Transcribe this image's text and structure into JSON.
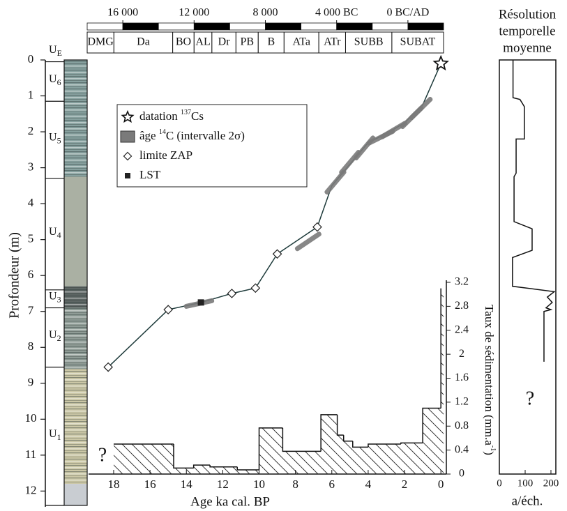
{
  "chart_data": [
    {
      "type": "line",
      "xlabel": "Age ka cal. BP",
      "ylabel": "Profondeur (m)",
      "xlim": [
        19.38,
        -0.3
      ],
      "ylim": [
        0,
        12.4
      ],
      "xticks": [
        18,
        16,
        14,
        12,
        10,
        8,
        6,
        4,
        2,
        0
      ],
      "yticks": [
        0,
        1,
        2,
        3,
        4,
        5,
        6,
        7,
        8,
        9,
        10,
        11,
        12
      ],
      "curve": {
        "color": "#1d3a3a",
        "x": [
          18.3,
          15,
          13.2,
          11.5,
          10.2,
          9,
          6.8,
          6,
          5,
          4,
          3,
          2,
          1,
          0
        ],
        "y": [
          8.55,
          6.95,
          6.75,
          6.5,
          6.35,
          5.4,
          4.65,
          3.5,
          2.9,
          2.3,
          2.05,
          1.75,
          1.25,
          0.1
        ]
      },
      "cs137": {
        "label": [
          "datation ",
          "137",
          "Cs"
        ],
        "x": [
          0
        ],
        "y": [
          0.1
        ]
      },
      "c14": {
        "label": [
          "âge ",
          "14",
          "C  (intervalle 2σ)"
        ],
        "color": "#7a7a7a",
        "x": [
          13.3,
          7.3,
          5.8,
          5.0,
          4.2,
          3.3,
          2.6,
          1.6,
          1.1
        ],
        "y": [
          6.78,
          5.05,
          3.4,
          2.85,
          2.45,
          2.15,
          1.95,
          1.6,
          1.35
        ]
      },
      "zap": {
        "label": [
          "limite ZAP"
        ],
        "x": [
          18.3,
          15,
          11.5,
          10.2,
          9,
          6.8
        ],
        "y": [
          8.55,
          6.95,
          6.5,
          6.35,
          5.4,
          4.65
        ]
      },
      "lst": {
        "label": [
          "LST"
        ],
        "x": [
          13.2
        ],
        "y": [
          6.75
        ]
      },
      "units": [
        {
          "label": "U",
          "sub": "E",
          "top": 0,
          "bottom": 0.05
        },
        {
          "label": "U",
          "sub": "6",
          "top": 0.05,
          "bottom": 1.15
        },
        {
          "label": "U",
          "sub": "5",
          "top": 1.15,
          "bottom": 3.3
        },
        {
          "label": "U",
          "sub": "4",
          "top": 3.3,
          "bottom": 6.4
        },
        {
          "label": "U",
          "sub": "3",
          "top": 6.4,
          "bottom": 6.9
        },
        {
          "label": "U",
          "sub": "2",
          "top": 6.9,
          "bottom": 8.55
        },
        {
          "label": "U",
          "sub": "1",
          "top": 8.55,
          "bottom": 12.4
        }
      ],
      "column": [
        {
          "top": 0,
          "bottom": 3.25,
          "color": "#86a09e",
          "striped": true
        },
        {
          "top": 3.25,
          "bottom": 6.3,
          "color": "#aab0a3",
          "striped": false
        },
        {
          "top": 6.3,
          "bottom": 6.9,
          "color": "#5d6664",
          "striped": true
        },
        {
          "top": 6.9,
          "bottom": 8.6,
          "color": "#8f9c96",
          "striped": true
        },
        {
          "top": 8.6,
          "bottom": 11.8,
          "color": "#cbc7a6",
          "striped": true
        },
        {
          "top": 11.8,
          "bottom": 12.4,
          "color": "#c9cdd2",
          "striped": false
        }
      ]
    },
    {
      "type": "histogram",
      "ylabel": [
        "Taux de sédimentation (mm.a",
        "-1",
        ")"
      ],
      "annotation": "?",
      "ylim": [
        0,
        3.2
      ],
      "yticks": [
        0,
        0.4,
        0.8,
        1.2,
        1.6,
        2,
        2.4,
        2.8,
        3.2
      ],
      "bins": [
        18,
        14.7,
        13.6,
        12.7,
        11.2,
        10,
        8.7,
        6.6,
        5.7,
        5.35,
        4.85,
        4,
        2.2,
        1,
        0,
        -0.15
      ],
      "values": [
        0.5,
        0.1,
        0.15,
        0.12,
        0.07,
        0.77,
        0.38,
        0.99,
        0.65,
        0.55,
        0.45,
        0.5,
        0.52,
        1.1,
        3.1
      ]
    },
    {
      "type": "line",
      "title": [
        "Résolution",
        "temporelle",
        "moyenne"
      ],
      "xlabel": "a/éch.",
      "annotation": "?",
      "xlim": [
        0,
        219
      ],
      "xticks": [
        0,
        100,
        200
      ],
      "x": [
        53,
        53,
        80,
        97,
        97,
        65,
        65,
        57,
        57,
        127,
        127,
        51,
        51,
        213,
        186,
        205,
        181,
        200,
        173,
        173
      ],
      "y": [
        0,
        1.05,
        1.1,
        1.3,
        2.2,
        2.2,
        3.15,
        3.25,
        4.5,
        4.7,
        5.3,
        5.5,
        6.3,
        6.45,
        6.6,
        6.75,
        6.9,
        6.95,
        7.0,
        8.4
      ]
    },
    {
      "type": "chronozones",
      "xlim": [
        18000,
        -2000
      ],
      "xticks": [
        {
          "value": 16000,
          "label": "16 000"
        },
        {
          "value": 12000,
          "label": "12 000"
        },
        {
          "value": 8000,
          "label": "8 000"
        },
        {
          "value": 4000,
          "label": "4 000 BC"
        },
        {
          "value": 0,
          "label": "0 BC/AD"
        }
      ],
      "blocks": [
        18000,
        16000,
        14000,
        12000,
        10000,
        8000,
        6000,
        4000,
        2000,
        0,
        -2000
      ],
      "block_colors": [
        "#ffffff",
        "#000000"
      ],
      "zones": [
        "DMG",
        "Da",
        "BO",
        "AL",
        "Dr",
        "PB",
        "B",
        "ATa",
        "ATr",
        "SUBB",
        "SUBAT"
      ],
      "zone_edges": [
        18000,
        16500,
        13200,
        12000,
        11000,
        9650,
        8400,
        6950,
        5000,
        3500,
        900,
        -2000
      ]
    }
  ]
}
